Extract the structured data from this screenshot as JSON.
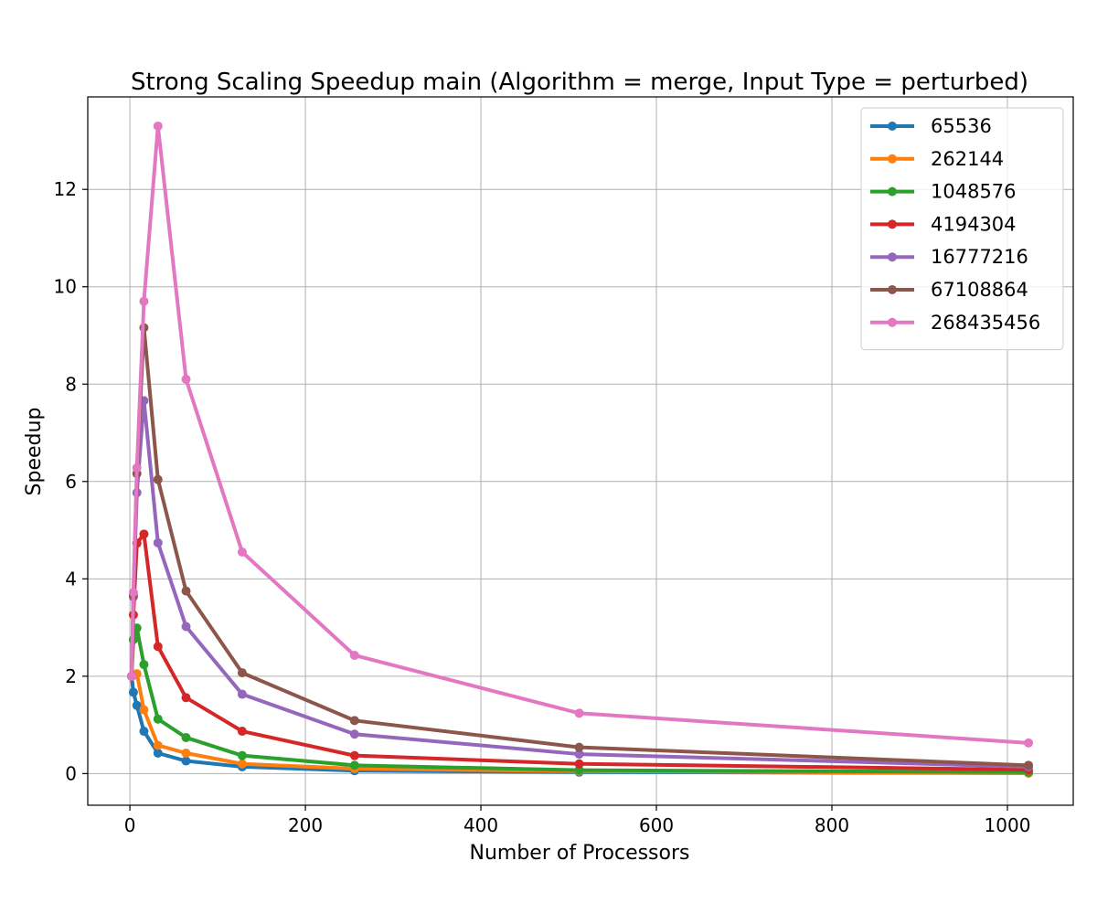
{
  "chart_data": {
    "type": "line",
    "title": "Strong Scaling Speedup main (Algorithm = merge, Input Type = perturbed)",
    "xlabel": "Number of Processors",
    "ylabel": "Speedup",
    "xlim": [
      -48,
      1075
    ],
    "ylim": [
      -0.65,
      13.9
    ],
    "xticks": [
      0,
      200,
      400,
      600,
      800,
      1000
    ],
    "yticks": [
      0,
      2,
      4,
      6,
      8,
      10,
      12
    ],
    "grid": true,
    "legend_position": "top-right",
    "x": [
      2,
      4,
      8,
      16,
      32,
      64,
      128,
      256,
      512,
      1024
    ],
    "series": [
      {
        "name": "65536",
        "color": "#1f77b4",
        "values": [
          2.0,
          1.67,
          1.4,
          0.87,
          0.42,
          0.26,
          0.14,
          0.06,
          0.03,
          0.01
        ]
      },
      {
        "name": "262144",
        "color": "#ff7f0e",
        "values": [
          2.0,
          2.02,
          2.05,
          1.31,
          0.58,
          0.42,
          0.2,
          0.1,
          0.05,
          0.01
        ]
      },
      {
        "name": "1048576",
        "color": "#2ca02c",
        "values": [
          2.0,
          2.75,
          2.99,
          2.24,
          1.12,
          0.74,
          0.37,
          0.17,
          0.07,
          0.03
        ]
      },
      {
        "name": "4194304",
        "color": "#d62728",
        "values": [
          2.0,
          3.26,
          4.73,
          4.92,
          2.61,
          1.56,
          0.87,
          0.37,
          0.2,
          0.08
        ]
      },
      {
        "name": "16777216",
        "color": "#9467bd",
        "values": [
          2.0,
          3.63,
          5.77,
          7.66,
          4.74,
          3.02,
          1.63,
          0.81,
          0.4,
          0.14
        ]
      },
      {
        "name": "67108864",
        "color": "#8c564b",
        "values": [
          2.0,
          3.66,
          6.16,
          9.16,
          6.04,
          3.75,
          2.07,
          1.09,
          0.54,
          0.17
        ]
      },
      {
        "name": "268435456",
        "color": "#e377c2",
        "values": [
          2.0,
          3.72,
          6.28,
          9.7,
          13.3,
          8.1,
          4.55,
          2.43,
          1.24,
          0.63
        ]
      }
    ]
  }
}
